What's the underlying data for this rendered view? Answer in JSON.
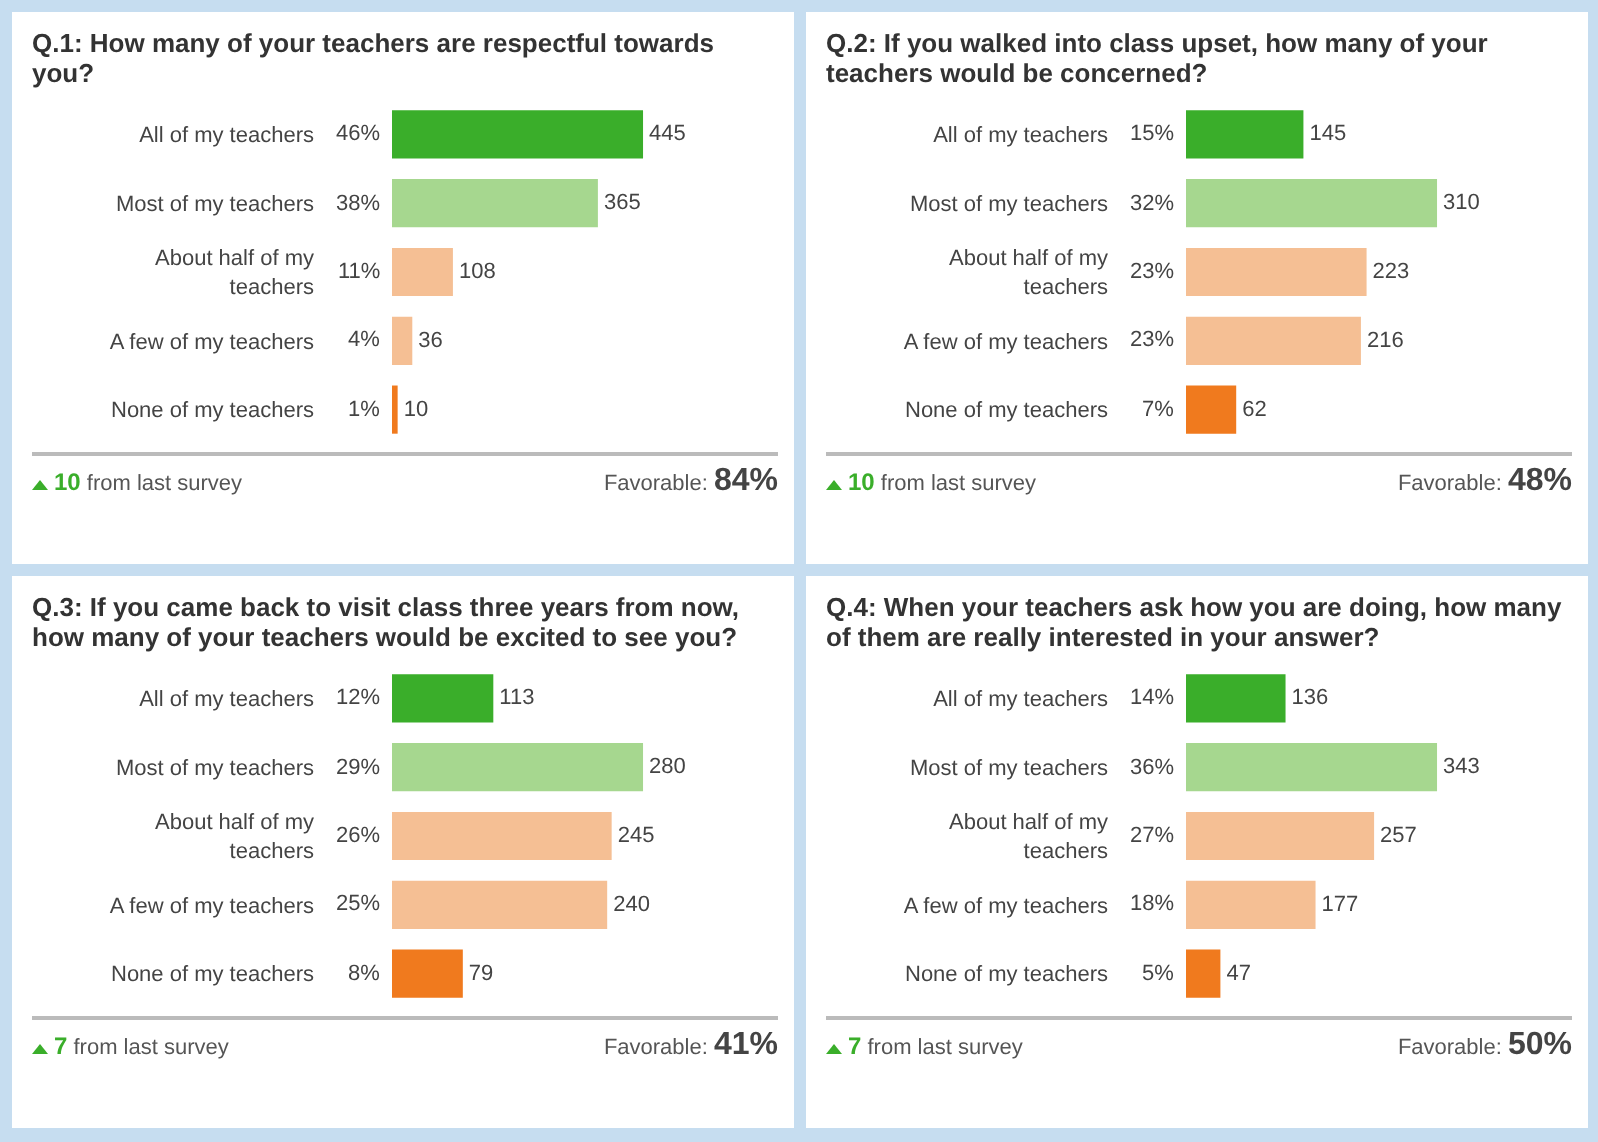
{
  "chart_data": [
    {
      "type": "bar",
      "orientation": "horizontal",
      "title": "Q.1: How many of your teachers are respectful towards you?",
      "categories": [
        "All of my teachers",
        "Most of my teachers",
        "About half of my teachers",
        "A few of my teachers",
        "None of my teachers"
      ],
      "values": [
        445,
        365,
        108,
        36,
        10
      ],
      "colors": [
        "#3aae2a",
        "#a6d78f",
        "#f5bf94",
        "#f5bf94",
        "#f07a1e"
      ],
      "data_labels": true,
      "annotations": [
        "46%",
        "38%",
        "11%",
        "4%",
        "1%",
        "10 from last survey",
        "Favorable: 84%"
      ]
    },
    {
      "type": "bar",
      "orientation": "horizontal",
      "title": "Q.2: If you walked into class upset, how many of your teachers would be concerned?",
      "categories": [
        "All of my teachers",
        "Most of my teachers",
        "About half of my teachers",
        "A few of my teachers",
        "None of my teachers"
      ],
      "values": [
        145,
        310,
        223,
        216,
        62
      ],
      "colors": [
        "#3aae2a",
        "#a6d78f",
        "#f5bf94",
        "#f5bf94",
        "#f07a1e"
      ],
      "data_labels": true,
      "annotations": [
        "15%",
        "32%",
        "23%",
        "23%",
        "7%",
        "10 from last survey",
        "Favorable: 48%"
      ]
    },
    {
      "type": "bar",
      "orientation": "horizontal",
      "title": "Q.3: If you came back to visit class three years from now, how many of your teachers would be excited to see you?",
      "categories": [
        "All of my teachers",
        "Most of my teachers",
        "About half of my teachers",
        "A few of my teachers",
        "None of my teachers"
      ],
      "values": [
        113,
        280,
        245,
        240,
        79
      ],
      "colors": [
        "#3aae2a",
        "#a6d78f",
        "#f5bf94",
        "#f5bf94",
        "#f07a1e"
      ],
      "data_labels": true,
      "annotations": [
        "12%",
        "29%",
        "26%",
        "25%",
        "8%",
        "7 from last survey",
        "Favorable: 41%"
      ]
    },
    {
      "type": "bar",
      "orientation": "horizontal",
      "title": "Q.4: When your teachers ask how you are doing, how many of them are really interested in your answer?",
      "categories": [
        "All of my teachers",
        "Most of my teachers",
        "About half of my teachers",
        "A few of my teachers",
        "None of my teachers"
      ],
      "values": [
        136,
        343,
        257,
        177,
        47
      ],
      "colors": [
        "#3aae2a",
        "#a6d78f",
        "#f5bf94",
        "#f5bf94",
        "#f07a1e"
      ],
      "data_labels": true,
      "annotations": [
        "14%",
        "36%",
        "27%",
        "18%",
        "5%",
        "7 from last survey",
        "Favorable: 50%"
      ]
    }
  ]
}
